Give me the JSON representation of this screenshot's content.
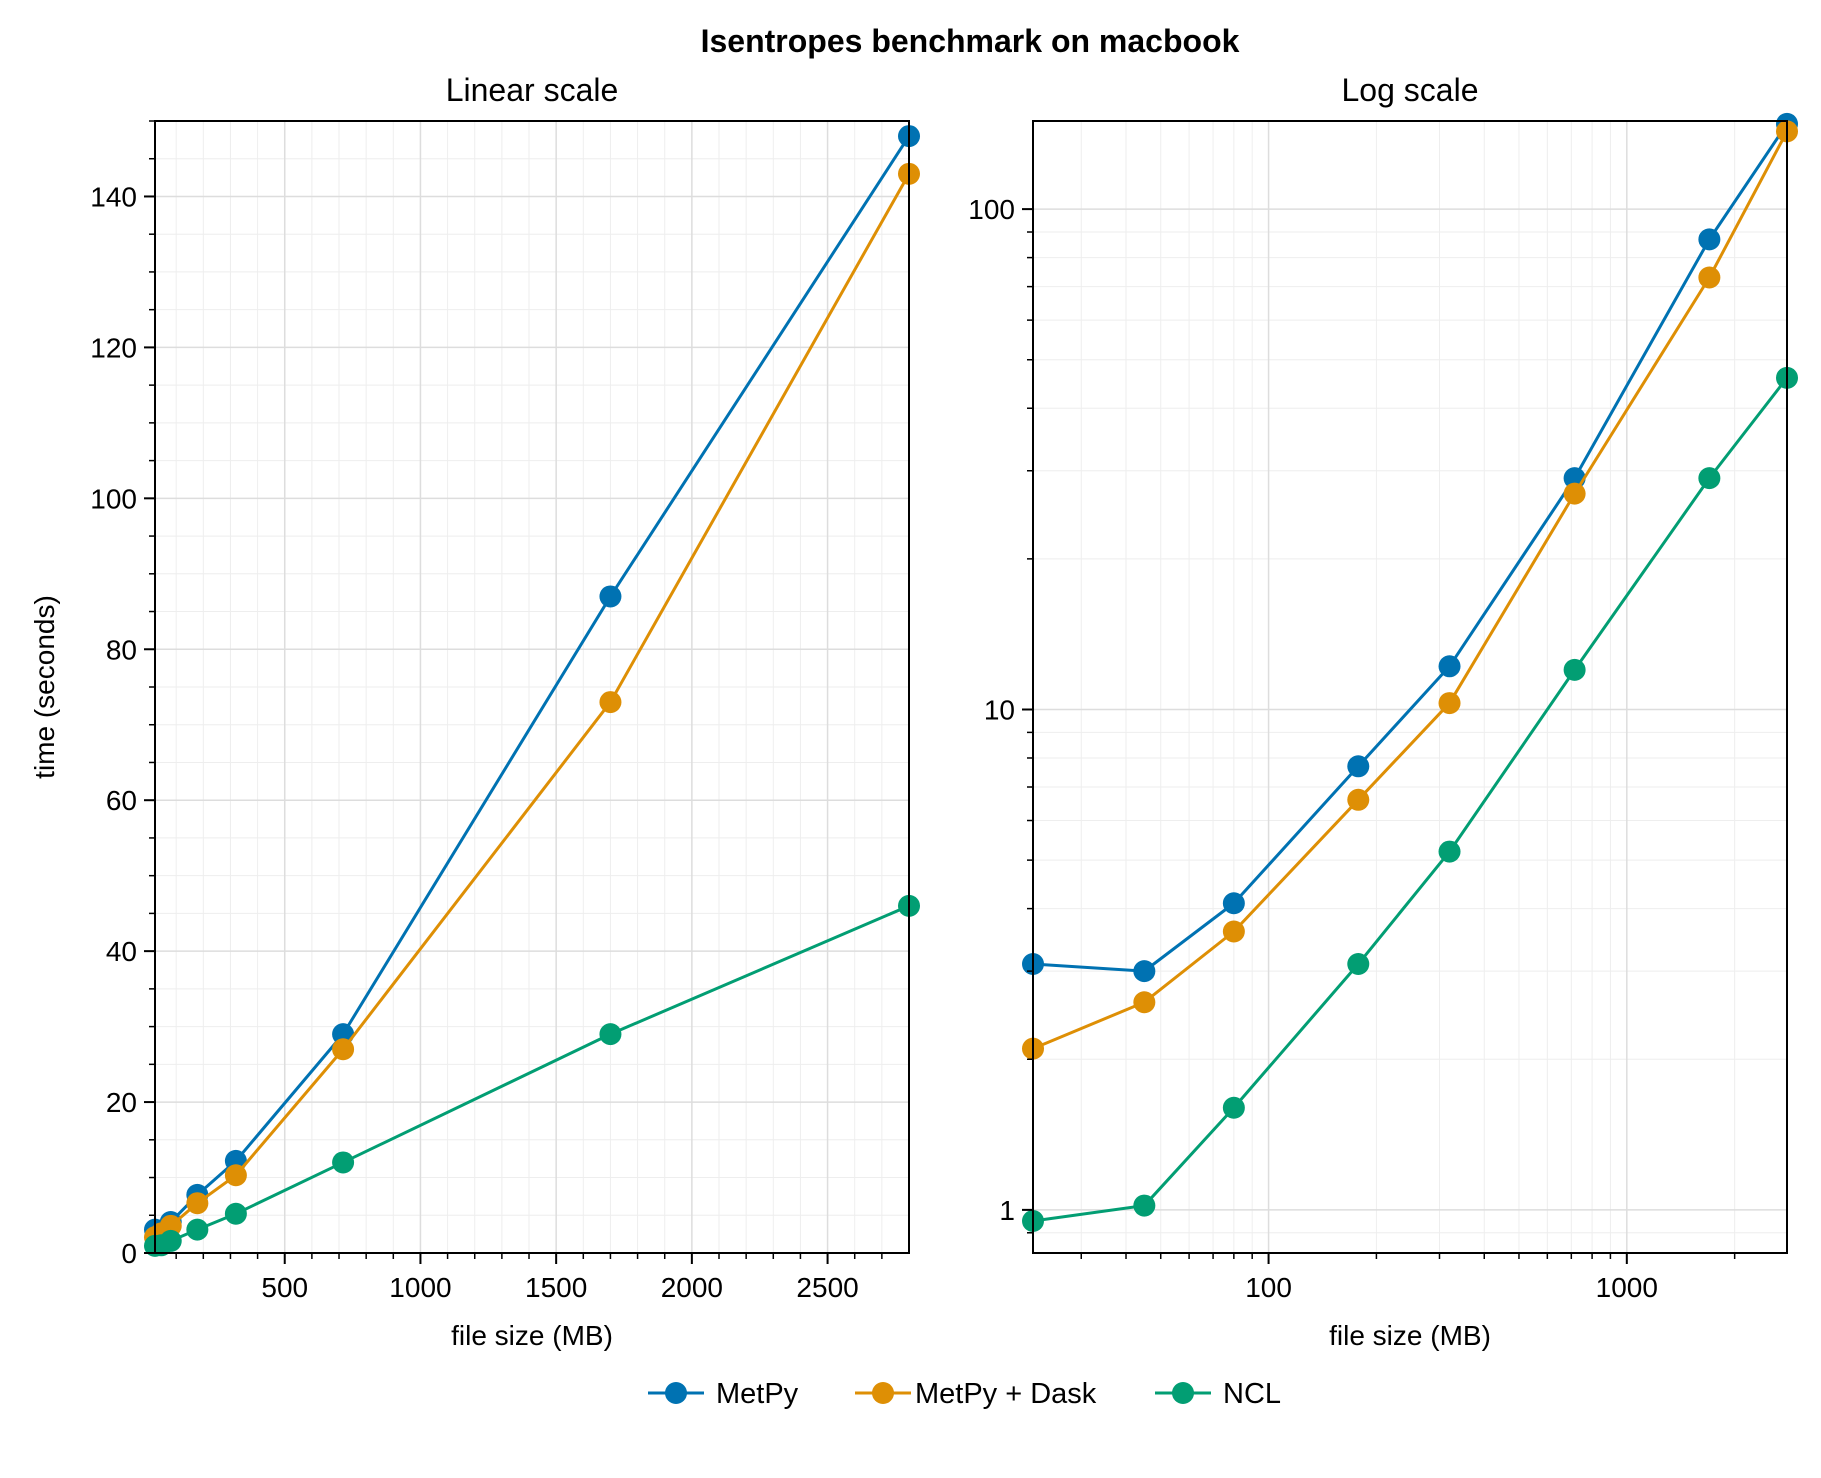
{
  "figure": {
    "suptitle": "Isentropes benchmark on macbook"
  },
  "legend": {
    "placement": "bottom-center",
    "entries": [
      "MetPy",
      "MetPy + Dask",
      "NCL"
    ]
  },
  "colors": {
    "MetPy": "#0072b2",
    "MetPy + Dask": "#de8f05",
    "NCL": "#029e73",
    "grid": "#dddddd",
    "axes": "#000000"
  },
  "chart_data": [
    {
      "type": "line",
      "title": "Linear scale",
      "xlabel": "file size (MB)",
      "ylabel": "time (seconds)",
      "xscale": "linear",
      "yscale": "linear",
      "xlim": [
        22,
        2800
      ],
      "ylim": [
        0,
        150
      ],
      "xticks": [
        500,
        1000,
        1500,
        2000,
        2500
      ],
      "xtick_labels": [
        "500",
        "1000",
        "1500",
        "2000",
        "2500"
      ],
      "yticks": [
        0,
        20,
        40,
        60,
        80,
        100,
        120,
        140
      ],
      "ytick_labels": [
        "0",
        "20",
        "40",
        "60",
        "80",
        "100",
        "120",
        "140"
      ],
      "grid": true,
      "x": [
        22,
        45,
        80,
        178,
        320,
        715,
        1700,
        2800
      ],
      "series": [
        {
          "name": "MetPy",
          "values": [
            3.1,
            3.0,
            4.1,
            7.7,
            12.2,
            29.0,
            87.0,
            148.0
          ]
        },
        {
          "name": "MetPy + Dask",
          "values": [
            2.1,
            2.6,
            3.6,
            6.6,
            10.3,
            27.0,
            73.0,
            143.0
          ]
        },
        {
          "name": "NCL",
          "values": [
            0.95,
            1.02,
            1.6,
            3.1,
            5.2,
            12.0,
            29.0,
            46.0
          ]
        }
      ]
    },
    {
      "type": "line",
      "title": "Log scale",
      "xlabel": "file size (MB)",
      "ylabel": "",
      "xscale": "log",
      "yscale": "log",
      "xlim": [
        22,
        2800
      ],
      "ylim": [
        0.82,
        150
      ],
      "xticks": [
        100,
        1000
      ],
      "xtick_labels": [
        "100",
        "1000"
      ],
      "yticks": [
        1,
        10,
        100
      ],
      "ytick_labels": [
        "1",
        "10",
        "100"
      ],
      "grid": true,
      "x": [
        22,
        45,
        80,
        178,
        320,
        715,
        1700,
        2800
      ],
      "series": [
        {
          "name": "MetPy",
          "values": [
            3.1,
            3.0,
            4.1,
            7.7,
            12.2,
            29.0,
            87.0,
            148.0
          ]
        },
        {
          "name": "MetPy + Dask",
          "values": [
            2.1,
            2.6,
            3.6,
            6.6,
            10.3,
            27.0,
            73.0,
            143.0
          ]
        },
        {
          "name": "NCL",
          "values": [
            0.95,
            1.02,
            1.6,
            3.1,
            5.2,
            12.0,
            29.0,
            46.0
          ]
        }
      ]
    }
  ]
}
